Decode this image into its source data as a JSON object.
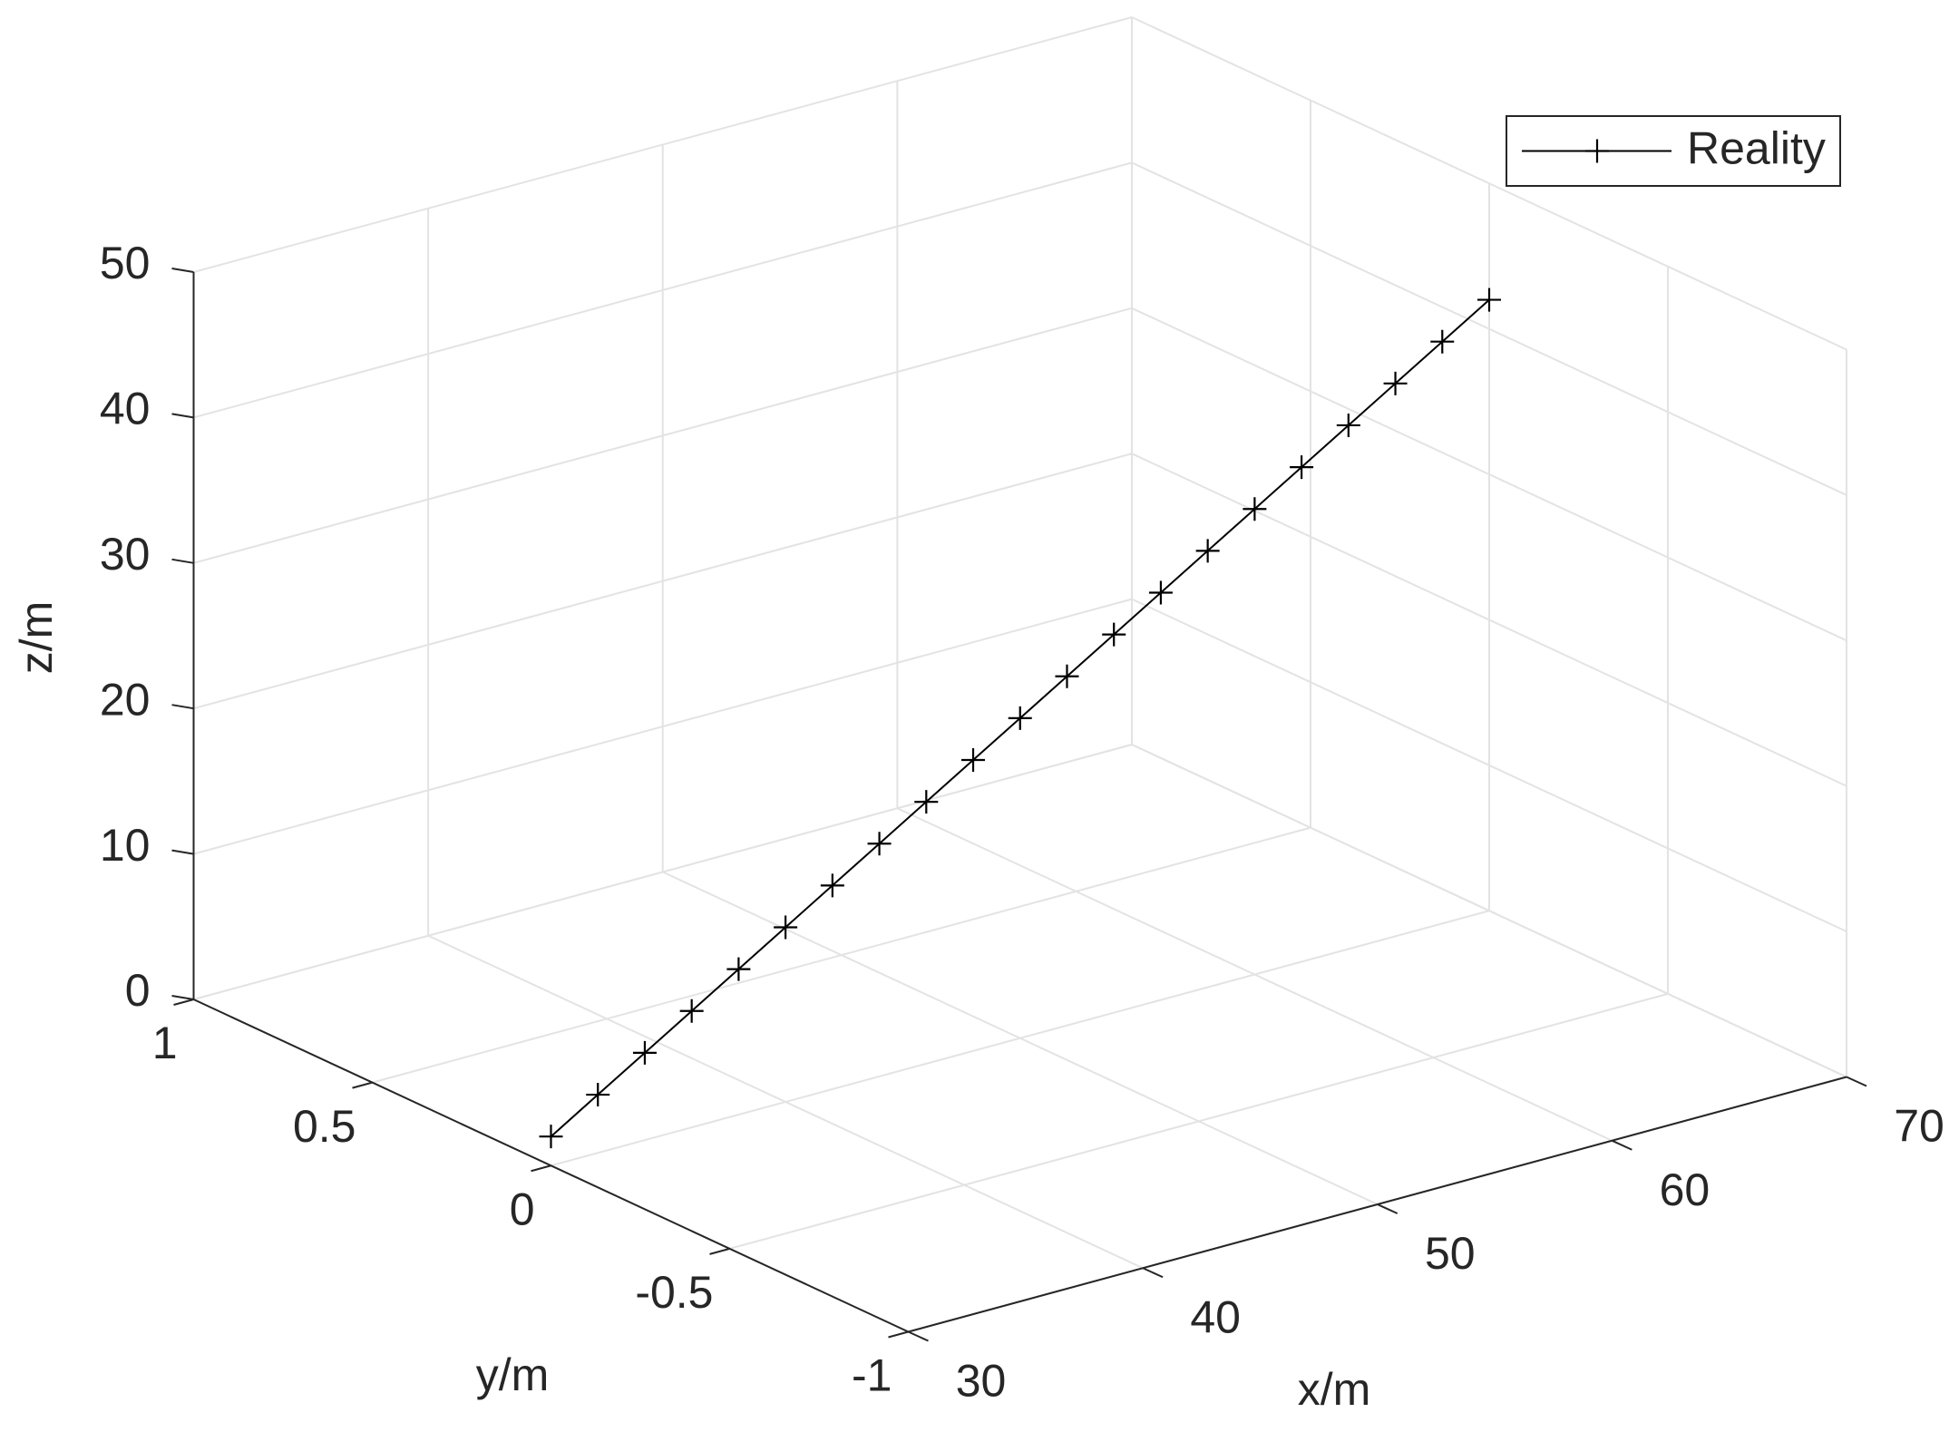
{
  "chart_data": {
    "type": "line3d",
    "xlabel": "x/m",
    "ylabel": "y/m",
    "zlabel": "z/m",
    "xlim": [
      30,
      70
    ],
    "ylim": [
      -1,
      1
    ],
    "zlim": [
      0,
      50
    ],
    "xticks": [
      30,
      40,
      50,
      60,
      70
    ],
    "yticks": [
      -1,
      -0.5,
      0,
      0.5,
      1
    ],
    "zticks": [
      0,
      10,
      20,
      30,
      40,
      50
    ],
    "grid": true,
    "legend": "northeast",
    "series": [
      {
        "name": "Reality",
        "color": "#000000",
        "marker": "+",
        "x": [
          30,
          32,
          34,
          36,
          38,
          40,
          42,
          44,
          46,
          48,
          50,
          52,
          54,
          56,
          58,
          60,
          62,
          64,
          66,
          68,
          70
        ],
        "y": [
          0,
          0,
          0,
          0,
          0,
          0,
          0,
          0,
          0,
          0,
          0,
          0,
          0,
          0,
          0,
          0,
          0,
          0,
          0,
          0,
          0
        ],
        "z": [
          2,
          4,
          6,
          8,
          10,
          12,
          14,
          16,
          18,
          20,
          22,
          24,
          26,
          28,
          30,
          32,
          34,
          36,
          38,
          40,
          42
        ]
      }
    ]
  }
}
